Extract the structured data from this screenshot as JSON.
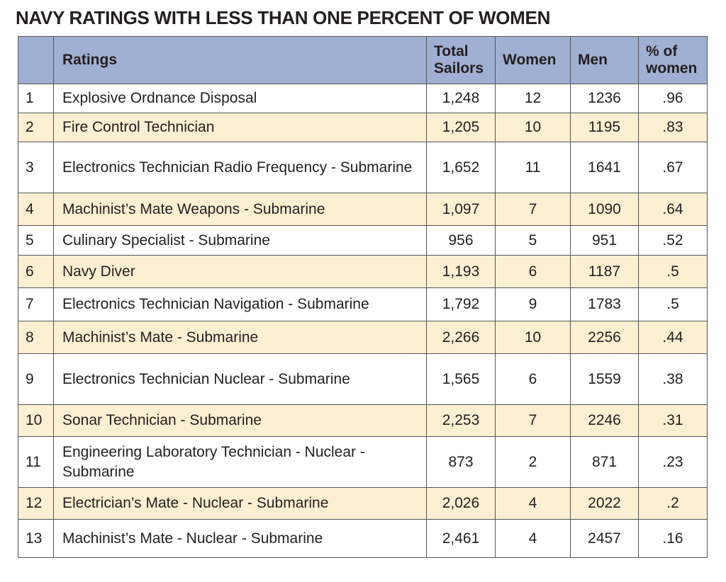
{
  "title": "NAVY RATINGS WITH LESS THAN ONE PERCENT OF WOMEN",
  "chart_data": {
    "type": "table",
    "title": "NAVY RATINGS WITH LESS THAN ONE PERCENT OF WOMEN",
    "columns": [
      "",
      "Ratings",
      "Total Sailors",
      "Women",
      "Men",
      "% of women"
    ],
    "rows": [
      [
        "1",
        "Explosive Ordnance Disposal",
        "1,248",
        "12",
        "1236",
        ".96"
      ],
      [
        "2",
        "Fire Control Technician",
        "1,205",
        "10",
        "1195",
        ".83"
      ],
      [
        "3",
        "Electronics Technician Radio Frequency - Submarine",
        "1,652",
        "11",
        "1641",
        ".67"
      ],
      [
        "4",
        "Machinist’s Mate Weapons - Submarine",
        "1,097",
        "7",
        "1090",
        ".64"
      ],
      [
        "5",
        "Culinary Specialist - Submarine",
        "956",
        "5",
        "951",
        ".52"
      ],
      [
        "6",
        "Navy Diver",
        "1,193",
        "6",
        "1187",
        ".5"
      ],
      [
        "7",
        "Electronics Technician Navigation - Submarine",
        "1,792",
        "9",
        "1783",
        ".5"
      ],
      [
        "8",
        "Machinist’s Mate - Submarine",
        "2,266",
        "10",
        "2256",
        ".44"
      ],
      [
        "9",
        "Electronics Technician Nuclear - Submarine",
        "1,565",
        "6",
        "1559",
        ".38"
      ],
      [
        "10",
        "Sonar Technician - Submarine",
        "2,253",
        "7",
        "2246",
        ".31"
      ],
      [
        "11",
        "Engineering Laboratory Technician - Nuclear - Submarine",
        "873",
        "2",
        "871",
        ".23"
      ],
      [
        "12",
        "Electrician’s Mate - Nuclear - Submarine",
        "2,026",
        "4",
        "2022",
        ".2"
      ],
      [
        "13",
        "Machinist’s Mate - Nuclear - Submarine",
        "2,461",
        "4",
        "2457",
        ".16"
      ]
    ]
  },
  "colors": {
    "header_fill": "#a0b0d2",
    "alt_row_fill": "#fcefd2",
    "row_fill": "#ffffff",
    "border": "#555555"
  }
}
